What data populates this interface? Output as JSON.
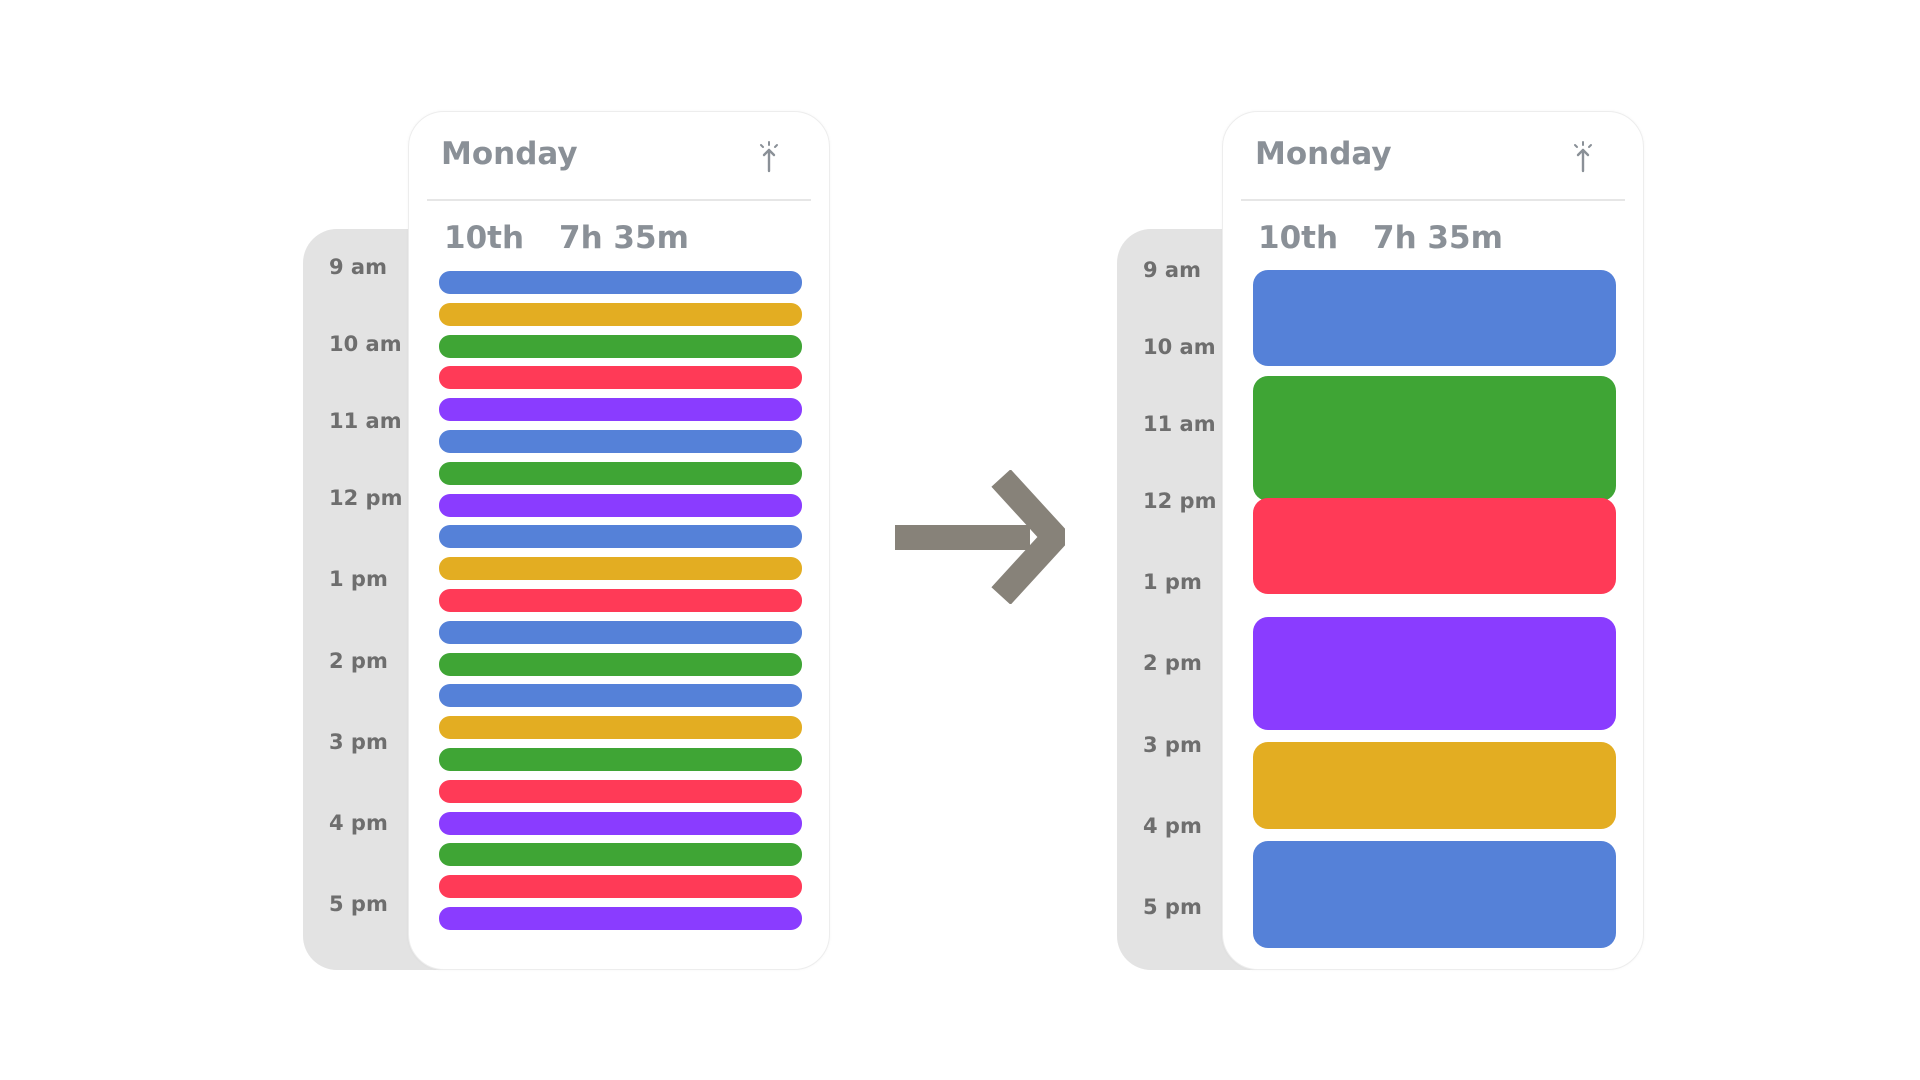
{
  "before": {
    "day": "Monday",
    "date": "10th",
    "duration": "7h 35m",
    "time_labels": [
      "9 am",
      "10 am",
      "11 am",
      "12 pm",
      "1 pm",
      "2 pm",
      "3 pm",
      "4 pm",
      "5 pm"
    ],
    "events": [
      {
        "color": "#5581d8"
      },
      {
        "color": "#e3ad22"
      },
      {
        "color": "#3fa535"
      },
      {
        "color": "#ff3a57"
      },
      {
        "color": "#8a3cff"
      },
      {
        "color": "#5581d8"
      },
      {
        "color": "#3fa535"
      },
      {
        "color": "#8a3cff"
      },
      {
        "color": "#5581d8"
      },
      {
        "color": "#e3ad22"
      },
      {
        "color": "#ff3a57"
      },
      {
        "color": "#5581d8"
      },
      {
        "color": "#3fa535"
      },
      {
        "color": "#5581d8"
      },
      {
        "color": "#e3ad22"
      },
      {
        "color": "#3fa535"
      },
      {
        "color": "#ff3a57"
      },
      {
        "color": "#8a3cff"
      },
      {
        "color": "#3fa535"
      },
      {
        "color": "#ff3a57"
      },
      {
        "color": "#8a3cff"
      }
    ]
  },
  "after": {
    "day": "Monday",
    "date": "10th",
    "duration": "7h 35m",
    "time_labels": [
      "9 am",
      "10 am",
      "11 am",
      "12 pm",
      "1 pm",
      "2 pm",
      "3 pm",
      "4 pm",
      "5 pm"
    ],
    "events": [
      {
        "color": "#5581d8"
      },
      {
        "color": "#3fa535"
      },
      {
        "color": "#ff3a57"
      },
      {
        "color": "#8a3cff"
      },
      {
        "color": "#e3ad22"
      },
      {
        "color": "#5581d8"
      }
    ]
  },
  "icons": {
    "pin": "pin-icon",
    "arrow": "arrow-right-icon"
  },
  "colors": {
    "rail": "#e3e3e3",
    "text": "#8a9097",
    "arrow": "#878279"
  }
}
